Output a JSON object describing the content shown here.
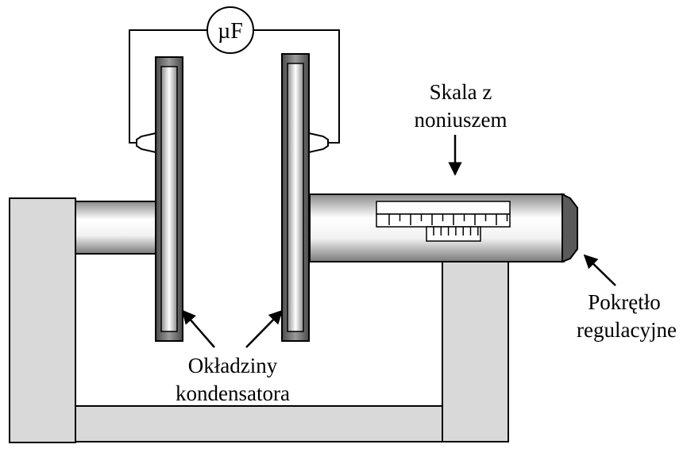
{
  "meter": {
    "label": "µF"
  },
  "labels": {
    "scale_line1": "Skala z",
    "scale_line2": "noniuszem",
    "knob_line1": "Pokrętło",
    "knob_line2": "regulacyjne",
    "plates_line1": "Okładziny",
    "plates_line2": "kondensatora"
  },
  "colors": {
    "frame_fill": "#d9d9d9",
    "plate_dark": "#555555",
    "stroke": "#000000"
  }
}
